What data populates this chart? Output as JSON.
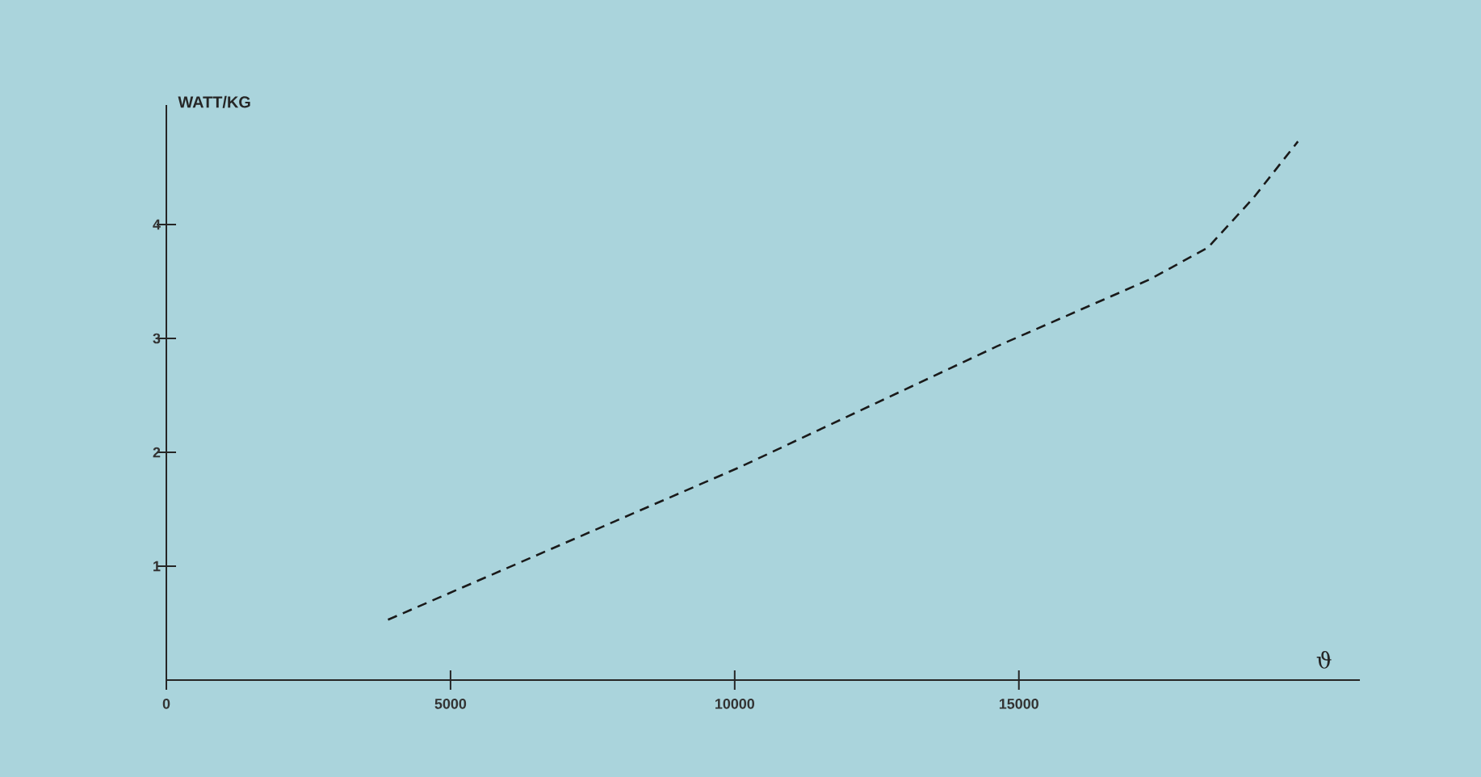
{
  "chart_data": {
    "type": "line",
    "xlabel": "ϑ",
    "ylabel": "WATT/KG",
    "x": [
      3900,
      10090,
      14610,
      17310,
      18330,
      19120,
      19910
    ],
    "values": [
      0.53,
      1.87,
      2.93,
      3.52,
      3.8,
      4.23,
      4.73
    ],
    "color": "#1a1a1a",
    "line_style": "dashed",
    "marker": "none",
    "xlim": [
      0,
      21000
    ],
    "ylim": [
      0,
      5.05
    ],
    "xticks": [
      0,
      5000,
      10000,
      15000
    ],
    "yticks": [
      1,
      2,
      3,
      4
    ]
  }
}
